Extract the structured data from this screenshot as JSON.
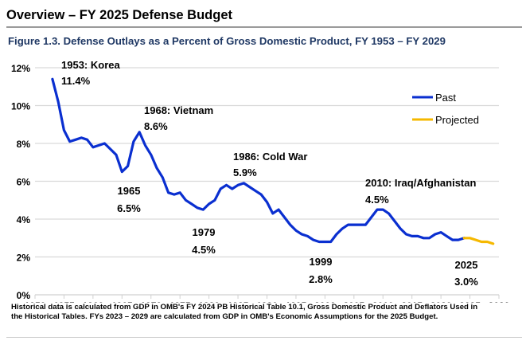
{
  "page": {
    "header": "Overview – FY 2025 Defense Budget",
    "figure_title": "Figure 1.3.  Defense Outlays as a Percent of Gross Domestic Product, FY 1953 – FY 2029",
    "footnote_line1": "Historical data is calculated from GDP in OMB's FY 2024 PB Historical Table 10.1, Gross Domestic Product and Deflators Used in",
    "footnote_line2": "the Historical Tables.  FYs 2023 – 2029 are calculated from GDP in OMB's Economic Assumptions for the 2025 Budget."
  },
  "chart_data": {
    "type": "line",
    "title": "Defense Outlays as a Percent of Gross Domestic Product, FY 1953 – FY 2029",
    "xlabel": "",
    "ylabel": "",
    "xlim": [
      1950,
      2030
    ],
    "ylim": [
      0,
      12
    ],
    "x_ticks": [
      1950,
      1955,
      1960,
      1965,
      1970,
      1975,
      1980,
      1985,
      1990,
      1995,
      2000,
      2005,
      2010,
      2015,
      2020,
      2025,
      2030
    ],
    "y_ticks": [
      0,
      2,
      4,
      6,
      8,
      10,
      12
    ],
    "y_tick_labels": [
      "0%",
      "2%",
      "4%",
      "6%",
      "8%",
      "10%",
      "12%"
    ],
    "grid": "horizontal",
    "legend_position": "top-right",
    "series": [
      {
        "name": "Past",
        "color": "#0a2fd0",
        "x": [
          1953,
          1954,
          1955,
          1956,
          1957,
          1958,
          1959,
          1960,
          1961,
          1962,
          1963,
          1964,
          1965,
          1966,
          1967,
          1968,
          1969,
          1970,
          1971,
          1972,
          1973,
          1974,
          1975,
          1976,
          1977,
          1978,
          1979,
          1980,
          1981,
          1982,
          1983,
          1984,
          1985,
          1986,
          1987,
          1988,
          1989,
          1990,
          1991,
          1992,
          1993,
          1994,
          1995,
          1996,
          1997,
          1998,
          1999,
          2000,
          2001,
          2002,
          2003,
          2004,
          2005,
          2006,
          2007,
          2008,
          2009,
          2010,
          2011,
          2012,
          2013,
          2014,
          2015,
          2016,
          2017,
          2018,
          2019,
          2020,
          2021,
          2022,
          2023,
          2024
        ],
        "values": [
          11.4,
          10.2,
          8.7,
          8.1,
          8.2,
          8.3,
          8.2,
          7.8,
          7.9,
          8.0,
          7.7,
          7.4,
          6.5,
          6.8,
          8.1,
          8.6,
          7.9,
          7.4,
          6.7,
          6.2,
          5.4,
          5.3,
          5.4,
          5.0,
          4.8,
          4.6,
          4.5,
          4.8,
          5.0,
          5.6,
          5.8,
          5.6,
          5.8,
          5.9,
          5.7,
          5.5,
          5.3,
          4.9,
          4.3,
          4.5,
          4.1,
          3.7,
          3.4,
          3.2,
          3.1,
          2.9,
          2.8,
          2.8,
          2.8,
          3.2,
          3.5,
          3.7,
          3.7,
          3.7,
          3.7,
          4.1,
          4.5,
          4.5,
          4.3,
          3.9,
          3.5,
          3.2,
          3.1,
          3.1,
          3.0,
          3.0,
          3.2,
          3.3,
          3.1,
          2.9,
          2.9,
          3.0
        ]
      },
      {
        "name": "Projected",
        "color": "#f5b800",
        "x": [
          2024,
          2025,
          2026,
          2027,
          2028,
          2029
        ],
        "values": [
          3.0,
          3.0,
          2.9,
          2.8,
          2.8,
          2.7
        ]
      }
    ],
    "annotations": [
      {
        "label": "1953: Korea",
        "value": "11.4%",
        "x": 1953
      },
      {
        "label": "1968: Vietnam",
        "value": "8.6%",
        "x": 1968
      },
      {
        "label": "1965",
        "value": "6.5%",
        "x": 1965
      },
      {
        "label": "1986: Cold War",
        "value": "5.9%",
        "x": 1986
      },
      {
        "label": "1979",
        "value": "4.5%",
        "x": 1979
      },
      {
        "label": "2010: Iraq/Afghanistan",
        "value": "4.5%",
        "x": 2010
      },
      {
        "label": "1999",
        "value": "2.8%",
        "x": 1999
      },
      {
        "label": "2025",
        "value": "3.0%",
        "x": 2025
      }
    ],
    "legend": [
      "Past",
      "Projected"
    ]
  }
}
